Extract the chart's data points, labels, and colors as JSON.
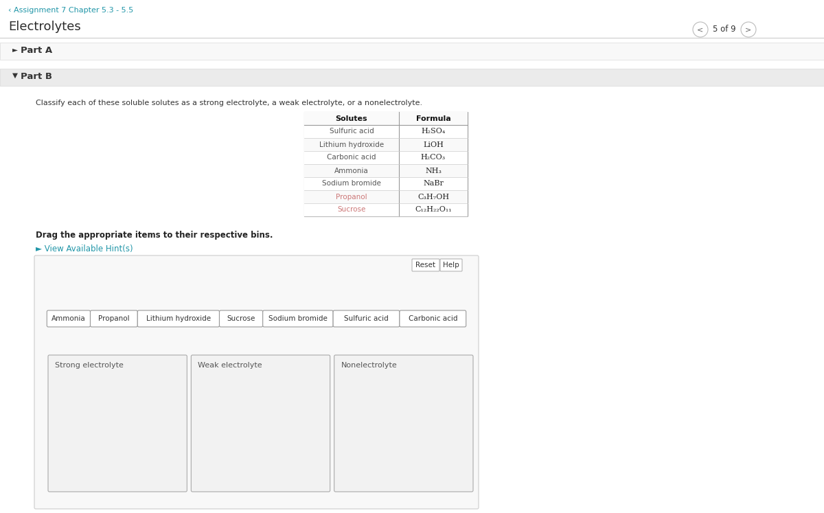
{
  "bg_color": "#ffffff",
  "header_link_text": "‹ Assignment 7 Chapter 5.3 - 5.5",
  "header_link_color": "#2196a8",
  "title": "Electrolytes",
  "title_color": "#2c2c2c",
  "title_fontsize": 13,
  "part_a_text": "Part A",
  "part_b_text": "Part B",
  "nav_text": "5 of 9",
  "classify_text": "Classify each of these soluble solutes as a strong electrolyte, a weak electrolyte, or a nonelectrolyte.",
  "table_headers": [
    "Solutes",
    "Formula"
  ],
  "table_rows": [
    [
      "Sulfuric acid",
      "H₂SO₄"
    ],
    [
      "Lithium hydroxide",
      "LiOH"
    ],
    [
      "Carbonic acid",
      "H₂CO₃"
    ],
    [
      "Ammonia",
      "NH₃"
    ],
    [
      "Sodium bromide",
      "NaBr"
    ],
    [
      "Propanol",
      "C₃H₇OH"
    ],
    [
      "Sucrose",
      "C₁₂H₂₂O₁₁"
    ]
  ],
  "propanol_color": "#cc7777",
  "sucrose_color": "#cc7777",
  "drag_text": "Drag the appropriate items to their respective bins.",
  "hint_text": "► View Available Hint(s)",
  "hint_color": "#2196a8",
  "reset_text": "Reset",
  "help_text": "Help",
  "draggable_items": [
    "Ammonia",
    "Propanol",
    "Lithium hydroxide",
    "Sucrose",
    "Sodium bromide",
    "Sulfuric acid",
    "Carbonic acid"
  ],
  "bin_labels": [
    "Strong electrolyte",
    "Weak electrolyte",
    "Nonelectrolyte"
  ]
}
